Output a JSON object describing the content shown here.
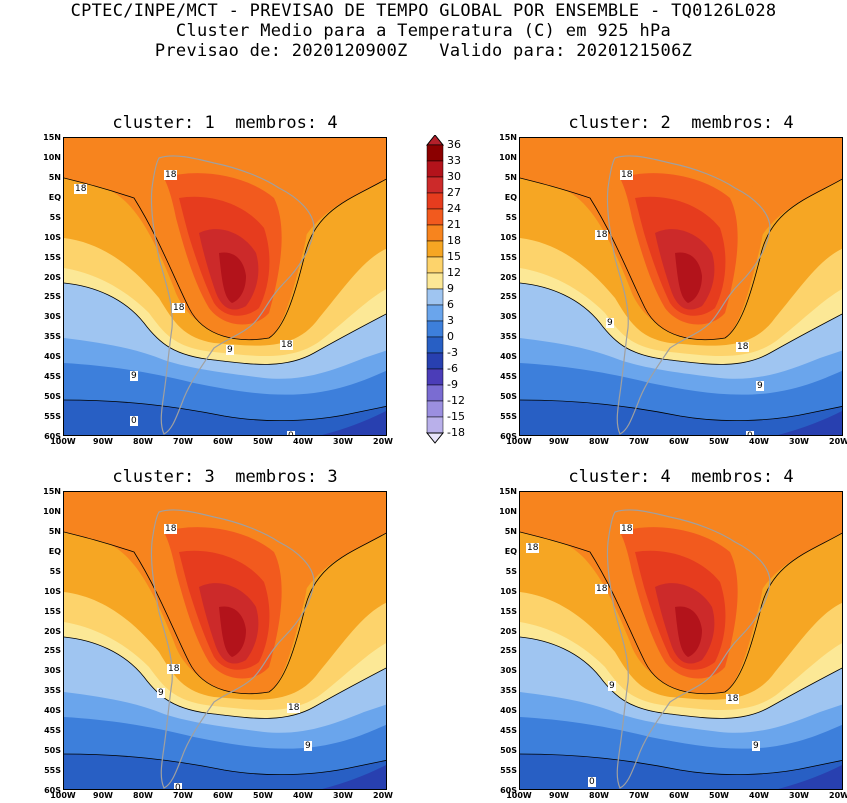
{
  "title": {
    "line1": "CPTEC/INPE/MCT - PREVISAO DE TEMPO GLOBAL POR ENSEMBLE - TQ0126L028",
    "line2": "Cluster Medio para a Temperatura (C) em 925 hPa",
    "line3": "Previsao de: 2020120900Z   Valido para: 2020121506Z"
  },
  "panels": [
    {
      "title": "cluster: 1  membros: 4",
      "contour_labels": [
        "18",
        "18",
        "18",
        "18",
        "9",
        "9",
        "0",
        "0"
      ]
    },
    {
      "title": "cluster: 2  membros: 4",
      "contour_labels": [
        "18",
        "18",
        "9",
        "18",
        "9",
        "0"
      ]
    },
    {
      "title": "cluster: 3  membros: 3",
      "contour_labels": [
        "18",
        "18",
        "9",
        "18",
        "9",
        "0"
      ]
    },
    {
      "title": "cluster: 4  membros: 4",
      "contour_labels": [
        "18",
        "18",
        "18",
        "9",
        "18",
        "9",
        "0",
        "0"
      ]
    }
  ],
  "lat_labels": [
    "15N",
    "10N",
    "5N",
    "EQ",
    "5S",
    "10S",
    "15S",
    "20S",
    "25S",
    "30S",
    "35S",
    "40S",
    "45S",
    "50S",
    "55S",
    "60S"
  ],
  "lon_labels": [
    "100W",
    "90W",
    "80W",
    "70W",
    "60W",
    "50W",
    "40W",
    "30W",
    "20W"
  ],
  "colorbar": {
    "labels": [
      "36",
      "33",
      "30",
      "27",
      "24",
      "21",
      "18",
      "15",
      "12",
      "9",
      "6",
      "3",
      "0",
      "-3",
      "-6",
      "-9",
      "-12",
      "-15",
      "-18"
    ],
    "colors": [
      "#8b0000",
      "#b3131b",
      "#cc2a2a",
      "#e63c1e",
      "#f25a1e",
      "#f7841e",
      "#f6a623",
      "#fdd36b",
      "#fce896",
      "#9fc5f1",
      "#6aa5ec",
      "#3d7fdb",
      "#285fc4",
      "#2840b0",
      "#4b3db8",
      "#7a6cd2",
      "#9b8fe0",
      "#b9b0ea",
      "#d9d4f6"
    ],
    "top_color": "#b3202a",
    "bottom_color": "#e8e4fb"
  },
  "contour_color": "#000000",
  "coast_color": "#a0a0a0"
}
